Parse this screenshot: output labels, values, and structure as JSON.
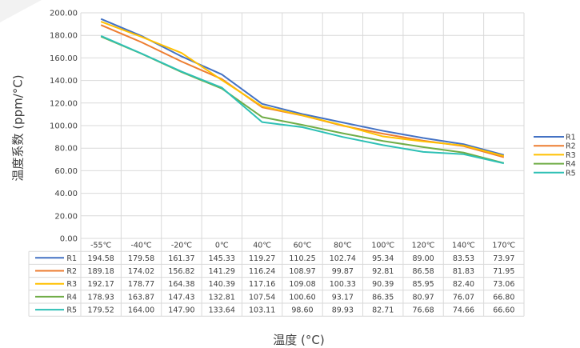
{
  "chart_data": {
    "type": "line",
    "xlabel": "温度 (°C)",
    "ylabel": "温度系数 (ppm/°C)",
    "ylim": [
      0,
      200
    ],
    "yticks": [
      "0.00",
      "20.00",
      "40.00",
      "60.00",
      "80.00",
      "100.00",
      "120.00",
      "140.00",
      "160.00",
      "180.00",
      "200.00"
    ],
    "categories": [
      "-55℃",
      "-40℃",
      "-20℃",
      "0℃",
      "40℃",
      "60℃",
      "80℃",
      "100℃",
      "120℃",
      "140℃",
      "170℃"
    ],
    "legend_position": "right",
    "grid": true,
    "data_table": true,
    "series": [
      {
        "name": "R1",
        "color": "#4472C4",
        "values": [
          194.58,
          179.58,
          161.37,
          145.33,
          119.27,
          110.25,
          102.74,
          95.34,
          89.0,
          83.53,
          73.97
        ],
        "labels": [
          "194.58",
          "179.58",
          "161.37",
          "145.33",
          "119.27",
          "110.25",
          "102.74",
          "95.34",
          "89.00",
          "83.53",
          "73.97"
        ]
      },
      {
        "name": "R2",
        "color": "#ED7D31",
        "values": [
          189.18,
          174.02,
          156.82,
          141.29,
          116.24,
          108.97,
          99.87,
          92.81,
          86.58,
          81.83,
          71.95
        ],
        "labels": [
          "189.18",
          "174.02",
          "156.82",
          "141.29",
          "116.24",
          "108.97",
          "99.87",
          "92.81",
          "86.58",
          "81.83",
          "71.95"
        ]
      },
      {
        "name": "R3",
        "color": "#FFC000",
        "values": [
          192.17,
          178.77,
          164.38,
          140.39,
          117.16,
          109.08,
          100.33,
          90.39,
          85.95,
          82.4,
          73.06
        ],
        "labels": [
          "192.17",
          "178.77",
          "164.38",
          "140.39",
          "117.16",
          "109.08",
          "100.33",
          "90.39",
          "85.95",
          "82.40",
          "73.06"
        ]
      },
      {
        "name": "R4",
        "color": "#70AD47",
        "values": [
          178.93,
          163.87,
          147.43,
          132.81,
          107.54,
          100.6,
          93.17,
          86.35,
          80.97,
          76.07,
          66.8
        ],
        "labels": [
          "178.93",
          "163.87",
          "147.43",
          "132.81",
          "107.54",
          "100.60",
          "93.17",
          "86.35",
          "80.97",
          "76.07",
          "66.80"
        ]
      },
      {
        "name": "R5",
        "color": "#2EC0B5",
        "values": [
          179.52,
          164.0,
          147.9,
          133.64,
          103.11,
          98.6,
          89.93,
          82.71,
          76.68,
          74.66,
          66.6
        ],
        "labels": [
          "179.52",
          "164.00",
          "147.90",
          "133.64",
          "103.11",
          "98.60",
          "89.93",
          "82.71",
          "76.68",
          "74.66",
          "66.60"
        ]
      }
    ]
  }
}
